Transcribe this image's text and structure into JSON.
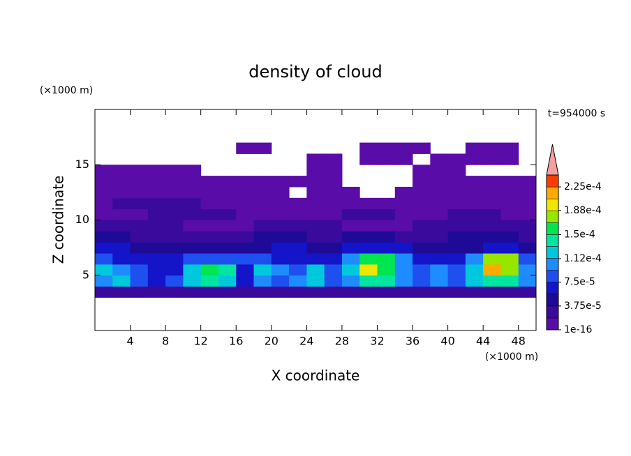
{
  "chart_data": {
    "type": "contour",
    "title": "density of cloud",
    "xlabel": "X coordinate",
    "ylabel": "Z coordinate",
    "xunit": "(×1000 m)",
    "yunit": "(×1000 m)",
    "time_label": "t=954000 s",
    "xlim": [
      0,
      50
    ],
    "ylim": [
      0,
      20
    ],
    "xticks": [
      4,
      8,
      12,
      16,
      20,
      24,
      28,
      32,
      36,
      40,
      44,
      48
    ],
    "yticks": [
      5,
      10,
      15
    ],
    "x": [
      1,
      3,
      5,
      7,
      9,
      11,
      13,
      15,
      17,
      19,
      21,
      23,
      25,
      27,
      29,
      31,
      33,
      35,
      37,
      39,
      41,
      43,
      45,
      47,
      49
    ],
    "z": [
      3.5,
      4.5,
      5.5,
      6.5,
      7.5,
      8.5,
      9.5,
      10.5,
      11.5,
      12.5,
      13.5,
      14.5,
      15.5,
      16.5
    ],
    "values": [
      [
        3e-05,
        3e-05,
        3e-05,
        3e-05,
        3e-05,
        3e-05,
        3e-05,
        3e-05,
        3e-05,
        3e-05,
        3e-05,
        3e-05,
        3e-05,
        3e-05,
        3e-05,
        3e-05,
        3e-05,
        3e-05,
        3e-05,
        3e-05,
        3e-05,
        3e-05,
        3e-05,
        3e-05,
        3e-05
      ],
      [
        0.000105,
        0.000125,
        9e-05,
        7e-05,
        9e-05,
        0.000125,
        0.000145,
        0.000125,
        7e-05,
        0.000105,
        9e-05,
        0.000105,
        0.000125,
        9e-05,
        0.000105,
        0.000145,
        0.000145,
        0.000105,
        9e-05,
        0.000105,
        9e-05,
        0.000125,
        0.000145,
        0.000145,
        0.000105
      ],
      [
        0.000125,
        0.000105,
        9e-05,
        7e-05,
        7e-05,
        0.000125,
        0.00016,
        0.000145,
        7e-05,
        0.000125,
        0.000105,
        9e-05,
        0.000125,
        9e-05,
        0.000125,
        0.0002,
        0.00016,
        0.000105,
        9e-05,
        0.000105,
        9e-05,
        0.000125,
        0.00022,
        0.00018,
        0.000105
      ],
      [
        9e-05,
        7e-05,
        7e-05,
        7e-05,
        7e-05,
        9e-05,
        9e-05,
        9e-05,
        9e-05,
        9e-05,
        7e-05,
        7e-05,
        7e-05,
        7e-05,
        0.000105,
        0.00016,
        0.00016,
        0.000105,
        7e-05,
        7e-05,
        7e-05,
        0.000105,
        0.00018,
        0.00018,
        9e-05
      ],
      [
        7e-05,
        7e-05,
        5e-05,
        5e-05,
        5e-05,
        5e-05,
        5e-05,
        5e-05,
        5e-05,
        5e-05,
        7e-05,
        7e-05,
        5e-05,
        5e-05,
        7e-05,
        7e-05,
        7e-05,
        7e-05,
        5e-05,
        5e-05,
        5e-05,
        5e-05,
        7e-05,
        7e-05,
        5e-05
      ],
      [
        5e-05,
        5e-05,
        3e-05,
        3e-05,
        3e-05,
        3e-05,
        3e-05,
        3e-05,
        3e-05,
        5e-05,
        5e-05,
        5e-05,
        3e-05,
        3e-05,
        5e-05,
        5e-05,
        5e-05,
        3e-05,
        3e-05,
        3e-05,
        5e-05,
        5e-05,
        5e-05,
        5e-05,
        3e-05
      ],
      [
        3e-05,
        3e-05,
        3e-05,
        3e-05,
        3e-05,
        1e-05,
        1e-05,
        1e-05,
        1e-05,
        3e-05,
        3e-05,
        3e-05,
        3e-05,
        3e-05,
        1e-05,
        1e-05,
        1e-05,
        1e-05,
        3e-05,
        3e-05,
        3e-05,
        3e-05,
        3e-05,
        3e-05,
        3e-05
      ],
      [
        1e-05,
        1e-05,
        1e-05,
        3e-05,
        3e-05,
        3e-05,
        3e-05,
        3e-05,
        1e-05,
        1e-05,
        1e-05,
        1e-05,
        1e-05,
        1e-05,
        3e-05,
        3e-05,
        3e-05,
        1e-05,
        1e-05,
        1e-05,
        3e-05,
        3e-05,
        3e-05,
        1e-05,
        1e-05
      ],
      [
        1e-05,
        3e-05,
        3e-05,
        3e-05,
        3e-05,
        3e-05,
        1e-05,
        1e-05,
        1e-05,
        1e-05,
        1e-05,
        1e-05,
        1e-05,
        1e-05,
        1e-05,
        1e-05,
        1e-05,
        1e-05,
        1e-05,
        1e-05,
        1e-05,
        1e-05,
        1e-05,
        1e-05,
        1e-05
      ],
      [
        1e-05,
        1e-05,
        1e-05,
        1e-05,
        1e-05,
        1e-05,
        1e-05,
        1e-05,
        1e-05,
        1e-05,
        1e-05,
        null,
        1e-05,
        1e-05,
        1e-05,
        null,
        null,
        1e-05,
        1e-05,
        1e-05,
        1e-05,
        1e-05,
        1e-05,
        1e-05,
        1e-05
      ],
      [
        1e-05,
        1e-05,
        1e-05,
        1e-05,
        1e-05,
        1e-05,
        1e-05,
        1e-05,
        1e-05,
        1e-05,
        1e-05,
        1e-05,
        1e-05,
        1e-05,
        null,
        null,
        null,
        null,
        1e-05,
        1e-05,
        1e-05,
        1e-05,
        1e-05,
        1e-05,
        1e-05
      ],
      [
        1e-05,
        1e-05,
        1e-05,
        1e-05,
        1e-05,
        1e-05,
        null,
        null,
        null,
        null,
        null,
        null,
        1e-05,
        1e-05,
        null,
        null,
        null,
        null,
        1e-05,
        1e-05,
        1e-05,
        null,
        null,
        null,
        null
      ],
      [
        null,
        null,
        null,
        null,
        null,
        null,
        null,
        null,
        null,
        null,
        null,
        null,
        1e-05,
        1e-05,
        null,
        1e-05,
        1e-05,
        1e-05,
        null,
        1e-05,
        1e-05,
        1e-05,
        1e-05,
        1e-05,
        null
      ],
      [
        null,
        null,
        null,
        null,
        null,
        null,
        null,
        null,
        1e-05,
        1e-05,
        null,
        null,
        null,
        null,
        null,
        1e-05,
        1e-05,
        1e-05,
        1e-05,
        null,
        null,
        1e-05,
        1e-05,
        1e-05,
        null
      ]
    ],
    "levels": [
      1e-16,
      1.875e-05,
      3.75e-05,
      5.625e-05,
      7.5e-05,
      9.375e-05,
      0.0001125,
      0.00013125,
      0.00015,
      0.00016875,
      0.0001875,
      0.00020625,
      0.000225,
      0.00024375
    ],
    "colors": [
      "#5a0ca8",
      "#3a0a9c",
      "#1e0a96",
      "#1414c8",
      "#1e50f0",
      "#1e8cff",
      "#00c8dc",
      "#00e6a0",
      "#00e650",
      "#96e600",
      "#f0e600",
      "#ffaa00",
      "#ff3c00"
    ],
    "extend_color": "#f4a0a0",
    "cticks": [
      1e-16,
      {
        "value": 3.75e-05,
        "label": "3.75e-5"
      },
      {
        "value": 7.5e-05,
        "label": "7.5e-5"
      },
      {
        "value": 0.000112,
        "label": "1.12e-4"
      },
      {
        "value": 0.00015,
        "label": "1.5e-4"
      },
      {
        "value": 0.000188,
        "label": "1.88e-4"
      },
      {
        "value": 0.000225,
        "label": "2.25e-4"
      }
    ]
  }
}
